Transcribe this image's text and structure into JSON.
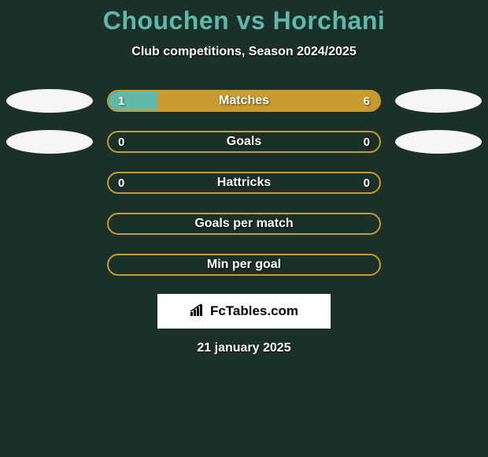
{
  "header": {
    "title": "Chouchen vs Horchani",
    "subtitle": "Club competitions, Season 2024/2025"
  },
  "colors": {
    "background": "#1a3028",
    "accent_teal": "#5fb8a8",
    "accent_gold": "#c99a2e",
    "oval_fill": "#f5f5f5",
    "text_white": "#ffffff"
  },
  "stats": [
    {
      "label": "Matches",
      "left_value": "1",
      "right_value": "6",
      "left_oval": true,
      "right_oval": true,
      "left_fill_pct": 18,
      "right_fill_pct": 82
    },
    {
      "label": "Goals",
      "left_value": "0",
      "right_value": "0",
      "left_oval": true,
      "right_oval": true,
      "left_fill_pct": 0,
      "right_fill_pct": 0
    },
    {
      "label": "Hattricks",
      "left_value": "0",
      "right_value": "0",
      "left_oval": false,
      "right_oval": false,
      "left_fill_pct": 0,
      "right_fill_pct": 0
    },
    {
      "label": "Goals per match",
      "left_value": "",
      "right_value": "",
      "left_oval": false,
      "right_oval": false,
      "left_fill_pct": 0,
      "right_fill_pct": 0
    },
    {
      "label": "Min per goal",
      "left_value": "",
      "right_value": "",
      "left_oval": false,
      "right_oval": false,
      "left_fill_pct": 0,
      "right_fill_pct": 0
    }
  ],
  "footer": {
    "logo_text": "FcTables.com",
    "date": "21 january 2025"
  }
}
